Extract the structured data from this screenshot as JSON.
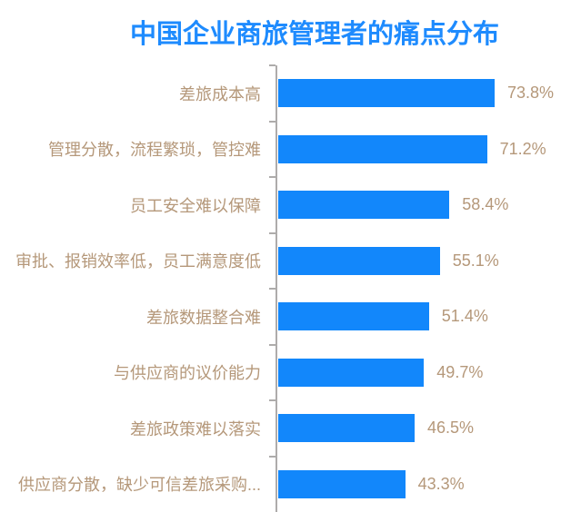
{
  "chart_data": {
    "type": "bar",
    "orientation": "horizontal",
    "title": "中国企业商旅管理者的痛点分布",
    "categories": [
      "差旅成本高",
      "管理分散，流程繁琐，管控难",
      "员工安全难以保障",
      "审批、报销效率低，员工满意度低",
      "差旅数据整合难",
      "与供应商的议价能力",
      "差旅政策难以落实",
      "供应商分散，缺少可信差旅采购..."
    ],
    "values": [
      73.8,
      71.2,
      58.4,
      55.1,
      51.4,
      49.7,
      46.5,
      43.3
    ],
    "value_labels": [
      "73.8%",
      "71.2%",
      "58.4%",
      "55.1%",
      "51.4%",
      "49.7%",
      "46.5%",
      "43.3%"
    ],
    "xlim": [
      0,
      100
    ],
    "grid": false,
    "legend": null,
    "axis": {
      "y_axis_line": true,
      "ticks": "between-categories",
      "x_axis_labels": false
    },
    "colors": {
      "bar": "#1287fb",
      "title": "#1e8bfe",
      "labels": "#b5987a",
      "axis": "#aeacab"
    }
  }
}
